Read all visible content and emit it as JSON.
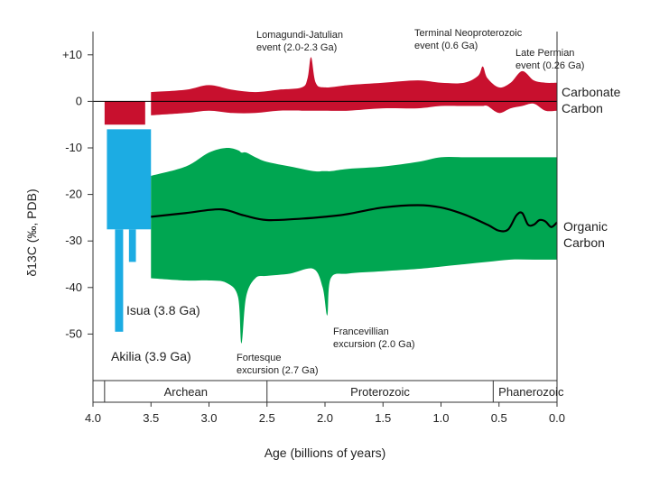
{
  "chart_data": {
    "type": "area",
    "xlabel": "Age (billions of years)",
    "ylabel": "δ13C (‰, PDB)",
    "xlim": [
      4.0,
      0.0
    ],
    "ylim": [
      -60,
      15
    ],
    "x_axis_reversed": true,
    "grid": false,
    "x_ticks": [
      "4.0",
      "3.5",
      "3.0",
      "2.5",
      "2.0",
      "1.5",
      "1.0",
      "0.5",
      "0.0"
    ],
    "y_ticks": [
      "+10",
      "0",
      "-10",
      "-20",
      "-30",
      "-40",
      "-50"
    ],
    "eons": [
      {
        "name": "Archean",
        "start": 3.9,
        "end": 2.5
      },
      {
        "name": "Proterozoic",
        "start": 2.5,
        "end": 0.55
      },
      {
        "name": "Phanerozoic",
        "start": 0.55,
        "end": 0.0
      }
    ],
    "colors": {
      "carbonate": "#c8102e",
      "organic": "#00a651",
      "early": "#1cace3",
      "line": "#000000"
    },
    "series": [
      {
        "name": "Carbonate Carbon",
        "label_lines": [
          "Carbonate",
          "Carbon"
        ],
        "kind": "band",
        "x": [
          3.5,
          3.2,
          3.0,
          2.8,
          2.6,
          2.4,
          2.2,
          2.15,
          2.12,
          2.08,
          2.0,
          1.8,
          1.5,
          1.2,
          1.0,
          0.8,
          0.68,
          0.64,
          0.6,
          0.5,
          0.4,
          0.3,
          0.2,
          0.1,
          0.0
        ],
        "upper": [
          2.0,
          2.5,
          3.5,
          2.5,
          2.0,
          2.5,
          3.0,
          5.0,
          9.5,
          4.0,
          3.0,
          3.5,
          4.0,
          4.5,
          4.0,
          4.0,
          5.5,
          7.5,
          5.0,
          3.0,
          4.0,
          6.5,
          4.5,
          4.0,
          4.0
        ],
        "lower": [
          -3.0,
          -2.5,
          -2.0,
          -2.5,
          -2.5,
          -2.0,
          -2.0,
          -2.0,
          -2.0,
          -2.0,
          -2.0,
          -2.0,
          -1.5,
          -1.5,
          -1.0,
          -1.0,
          -1.0,
          -1.0,
          -1.0,
          -2.5,
          -1.5,
          -1.0,
          -0.5,
          -2.0,
          -2.0
        ]
      },
      {
        "name": "Carbonate Carbon (Early Archean)",
        "kind": "band",
        "x": [
          3.9,
          3.55
        ],
        "upper": [
          0.0,
          0.0
        ],
        "lower": [
          -5.0,
          -5.0
        ]
      },
      {
        "name": "Organic Carbon",
        "label_lines": [
          "Organic",
          "Carbon"
        ],
        "kind": "band",
        "x": [
          3.5,
          3.2,
          3.0,
          2.85,
          2.75,
          2.72,
          2.68,
          2.6,
          2.5,
          2.3,
          2.1,
          2.02,
          1.98,
          1.95,
          1.8,
          1.5,
          1.2,
          1.0,
          0.8,
          0.6,
          0.4,
          0.2,
          0.0
        ],
        "upper": [
          -16.0,
          -14.0,
          -11.0,
          -10.0,
          -10.5,
          -11.0,
          -11.0,
          -12.0,
          -13.0,
          -14.0,
          -15.0,
          -15.0,
          -15.0,
          -15.0,
          -14.5,
          -14.0,
          -13.0,
          -12.0,
          -12.0,
          -12.0,
          -12.0,
          -12.0,
          -12.0
        ],
        "lower": [
          -38.0,
          -38.5,
          -38.5,
          -39.0,
          -42.0,
          -52.0,
          -42.0,
          -38.0,
          -37.5,
          -37.0,
          -36.0,
          -40.0,
          -46.0,
          -38.0,
          -37.0,
          -36.5,
          -36.0,
          -35.5,
          -35.0,
          -34.5,
          -34.0,
          -34.0,
          -34.0
        ]
      },
      {
        "name": "Organic carbon trend",
        "kind": "line",
        "x": [
          3.5,
          3.2,
          2.9,
          2.7,
          2.5,
          2.2,
          2.0,
          1.8,
          1.5,
          1.2,
          1.0,
          0.8,
          0.6,
          0.5,
          0.42,
          0.35,
          0.3,
          0.25,
          0.2,
          0.15,
          0.1,
          0.05,
          0.0
        ],
        "values": [
          -24.8,
          -24.0,
          -23.2,
          -24.5,
          -25.5,
          -25.2,
          -24.8,
          -24.2,
          -22.8,
          -22.3,
          -22.8,
          -24.3,
          -26.5,
          -27.8,
          -27.5,
          -24.5,
          -24.0,
          -26.5,
          -26.5,
          -25.5,
          -25.8,
          -27.0,
          -26.0
        ]
      }
    ],
    "early_bars": [
      {
        "name": "Isua block",
        "x0": 3.88,
        "x1": 3.5,
        "top": -6,
        "bottom": -27.5
      },
      {
        "name": "Isua spike",
        "x0": 3.69,
        "x1": 3.63,
        "top": -27.5,
        "bottom": -34.5
      },
      {
        "name": "Akilia spike",
        "x0": 3.81,
        "x1": 3.74,
        "top": -27.5,
        "bottom": -49.5
      }
    ],
    "annotations": [
      {
        "lines": [
          "Lomagundi-Jatulian",
          "event (2.0-2.3 Ga)"
        ]
      },
      {
        "lines": [
          "Terminal Neoproterozoic",
          "event (0.6 Ga)"
        ]
      },
      {
        "lines": [
          "Late Permian",
          "event (0.26 Ga)"
        ]
      },
      {
        "lines": [
          "Isua (3.8 Ga)"
        ]
      },
      {
        "lines": [
          "Akilia (3.9 Ga)"
        ]
      },
      {
        "lines": [
          "Fortesque",
          "excursion (2.7 Ga)"
        ]
      },
      {
        "lines": [
          "Francevillian",
          "excursion (2.0 Ga)"
        ]
      }
    ]
  }
}
